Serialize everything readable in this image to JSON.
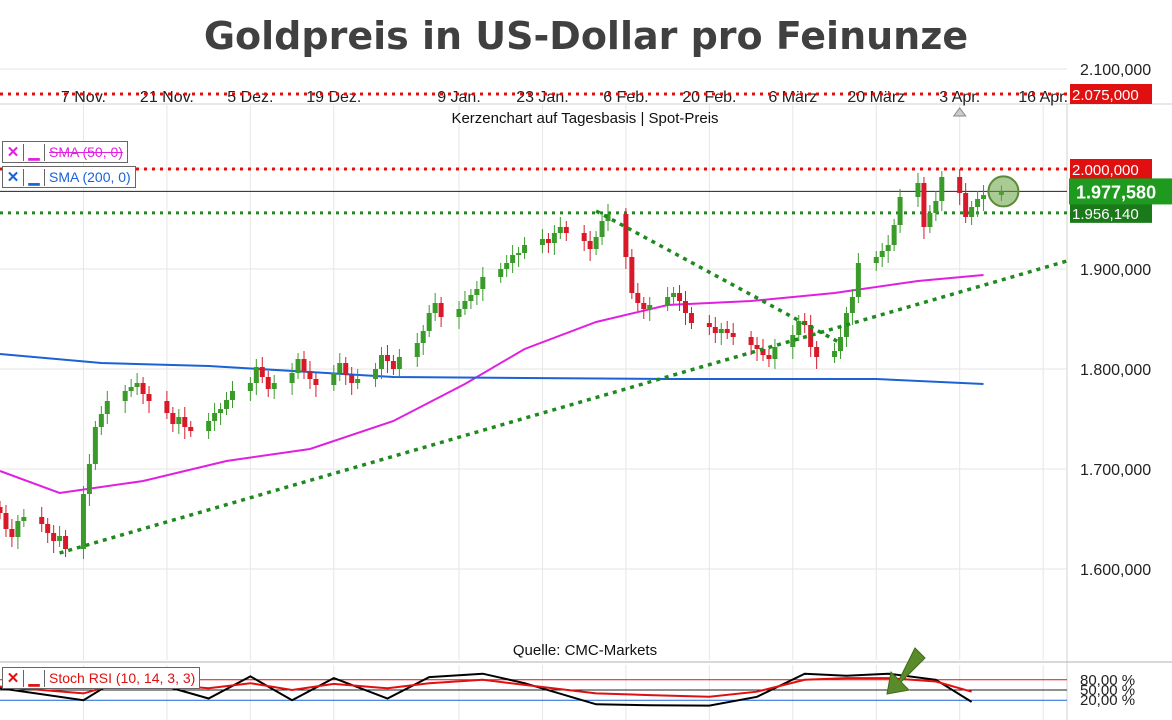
{
  "title": "Goldpreis in US-Dollar pro Feinunze",
  "subtitle": "Kerzenchart auf Tagesbasis | Spot-Preis",
  "source": "Quelle: CMC-Markets",
  "legends": {
    "sma50": "SMA (50, 0)",
    "sma200": "SMA (200, 0)",
    "stoch": "Stoch RSI (10, 14, 3, 3)",
    "x_glyph": "✕",
    "minus_glyph": "▁"
  },
  "colors": {
    "up": "#3a9a2a",
    "down": "#d8192a",
    "sma50": "#e020e0",
    "sma200": "#1a62d6",
    "resistance": "#e01010",
    "support": "#1e8a1e",
    "current_price_bg": "#1e9a1e",
    "grid": "#e6e6e6"
  },
  "chart_data": [
    {
      "type": "candlestick",
      "title": "Goldpreis in US-Dollar pro Feinunze",
      "subtitle": "Kerzenchart auf Tagesbasis | Spot-Preis",
      "x_tick_labels": [
        "7 Nov.",
        "21 Nov.",
        "5 Dez.",
        "19 Dez.",
        "9 Jan.",
        "23 Jan.",
        "6 Feb.",
        "20 Feb.",
        "6 März",
        "20 März",
        "3 Apr.",
        "16 Apr."
      ],
      "y_tick_labels": [
        "2.100,000",
        "1.900,000",
        "1.800,000",
        "1.700,000",
        "1.600,000"
      ],
      "y_ticks": [
        2100,
        1900,
        1800,
        1700,
        1600
      ],
      "ylim": [
        1575,
        2125
      ],
      "date_range": [
        "2022-10-24",
        "2023-04-21"
      ],
      "grid": true,
      "ohlc_start": "2022-10-24",
      "ohlc_dates_note": "trading days (Mon-Fri)",
      "closes": [
        1656,
        1640,
        1632,
        1648,
        1652,
        1645,
        1636,
        1628,
        1633,
        1620,
        1675,
        1705,
        1742,
        1755,
        1768,
        1778,
        1782,
        1786,
        1775,
        1768,
        1756,
        1745,
        1752,
        1742,
        1738,
        1748,
        1756,
        1760,
        1769,
        1778,
        1786,
        1802,
        1792,
        1780,
        1786,
        1796,
        1810,
        1798,
        1790,
        1784,
        1796,
        1806,
        1794,
        1786,
        1790,
        1800,
        1814,
        1808,
        1800,
        1812,
        1826,
        1838,
        1856,
        1866,
        1852,
        1860,
        1868,
        1874,
        1880,
        1892,
        1900,
        1906,
        1914,
        1916,
        1924,
        1930,
        1926,
        1936,
        1942,
        1936,
        1928,
        1920,
        1932,
        1948,
        1955,
        1912,
        1876,
        1866,
        1860,
        1864,
        1872,
        1876,
        1868,
        1856,
        1846,
        1842,
        1836,
        1840,
        1836,
        1832,
        1824,
        1820,
        1814,
        1810,
        1822,
        1834,
        1848,
        1844,
        1822,
        1812,
        1818,
        1832,
        1856,
        1872,
        1906,
        1912,
        1918,
        1924,
        1944,
        1972,
        1986,
        1942,
        1956,
        1968,
        1992,
        1976,
        1952,
        1962,
        1970,
        1974,
        1977.58
      ],
      "highs_note": "approx",
      "lows_note": "approx",
      "current_price_label": "1.977,580",
      "current_price": 1977.58,
      "levels": [
        {
          "label": "2.075,000",
          "value": 2075,
          "color": "#e01010",
          "style": "dotted"
        },
        {
          "label": "2.000,000",
          "value": 2000,
          "color": "#e01010",
          "style": "dotted"
        },
        {
          "label": "1.956,140",
          "value": 1956.14,
          "color": "#1e8a1e",
          "style": "dotted"
        }
      ],
      "trendlines": [
        {
          "name": "uptrend support",
          "from": [
            "2022-11-03",
            1616
          ],
          "to": [
            "2023-04-21",
            1908
          ],
          "color": "#1e8a1e"
        },
        {
          "name": "downtrend",
          "from": [
            "2023-02-01",
            1958
          ],
          "to": [
            "2023-03-14",
            1826
          ],
          "color": "#1e8a1e"
        }
      ],
      "series": [
        {
          "name": "SMA (50, 0)",
          "color": "#e020e0",
          "points": [
            [
              "2022-10-24",
              1698
            ],
            [
              "2022-11-03",
              1676
            ],
            [
              "2022-11-17",
              1688
            ],
            [
              "2022-12-01",
              1708
            ],
            [
              "2022-12-15",
              1720
            ],
            [
              "2022-12-29",
              1748
            ],
            [
              "2023-01-10",
              1785
            ],
            [
              "2023-01-20",
              1820
            ],
            [
              "2023-02-01",
              1847
            ],
            [
              "2023-02-13",
              1864
            ],
            [
              "2023-02-27",
              1868
            ],
            [
              "2023-03-13",
              1876
            ],
            [
              "2023-03-27",
              1888
            ],
            [
              "2023-04-07",
              1894
            ]
          ]
        },
        {
          "name": "SMA (200, 0)",
          "color": "#1a62d6",
          "points": [
            [
              "2022-10-24",
              1815
            ],
            [
              "2022-11-10",
              1806
            ],
            [
              "2022-11-28",
              1803
            ],
            [
              "2022-12-15",
              1797
            ],
            [
              "2022-12-29",
              1792
            ],
            [
              "2023-01-20",
              1791
            ],
            [
              "2023-02-13",
              1790
            ],
            [
              "2023-03-06",
              1790
            ],
            [
              "2023-03-20",
              1790
            ],
            [
              "2023-04-07",
              1785
            ]
          ]
        }
      ]
    },
    {
      "type": "line",
      "title": "Stoch RSI (10, 14, 3, 3)",
      "y_tick_labels": [
        "80,00 %",
        "50,00 %",
        "20,00 %"
      ],
      "y_ticks": [
        80,
        50,
        20
      ],
      "ylim": [
        0,
        100
      ],
      "series": [
        {
          "name": "K",
          "color": "#000000",
          "points": [
            [
              "2022-10-24",
              55
            ],
            [
              "2022-11-07",
              20
            ],
            [
              "2022-11-14",
              95
            ],
            [
              "2022-11-28",
              25
            ],
            [
              "2022-12-05",
              90
            ],
            [
              "2022-12-12",
              20
            ],
            [
              "2022-12-19",
              85
            ],
            [
              "2022-12-28",
              25
            ],
            [
              "2023-01-04",
              88
            ],
            [
              "2023-01-13",
              98
            ],
            [
              "2023-01-20",
              70
            ],
            [
              "2023-02-01",
              8
            ],
            [
              "2023-02-10",
              5
            ],
            [
              "2023-02-20",
              4
            ],
            [
              "2023-02-28",
              30
            ],
            [
              "2023-03-08",
              98
            ],
            [
              "2023-03-15",
              92
            ],
            [
              "2023-03-22",
              98
            ],
            [
              "2023-03-30",
              80
            ],
            [
              "2023-04-05",
              15
            ]
          ]
        },
        {
          "name": "D",
          "color": "#e01010",
          "points": [
            [
              "2022-10-24",
              60
            ],
            [
              "2022-11-07",
              40
            ],
            [
              "2022-11-14",
              75
            ],
            [
              "2022-11-28",
              55
            ],
            [
              "2022-12-05",
              70
            ],
            [
              "2022-12-12",
              50
            ],
            [
              "2022-12-19",
              68
            ],
            [
              "2022-12-28",
              55
            ],
            [
              "2023-01-04",
              70
            ],
            [
              "2023-01-13",
              80
            ],
            [
              "2023-01-20",
              65
            ],
            [
              "2023-02-01",
              40
            ],
            [
              "2023-02-10",
              35
            ],
            [
              "2023-02-20",
              30
            ],
            [
              "2023-02-28",
              45
            ],
            [
              "2023-03-08",
              80
            ],
            [
              "2023-03-15",
              85
            ],
            [
              "2023-03-22",
              85
            ],
            [
              "2023-03-30",
              75
            ],
            [
              "2023-04-05",
              45
            ]
          ]
        }
      ]
    }
  ]
}
